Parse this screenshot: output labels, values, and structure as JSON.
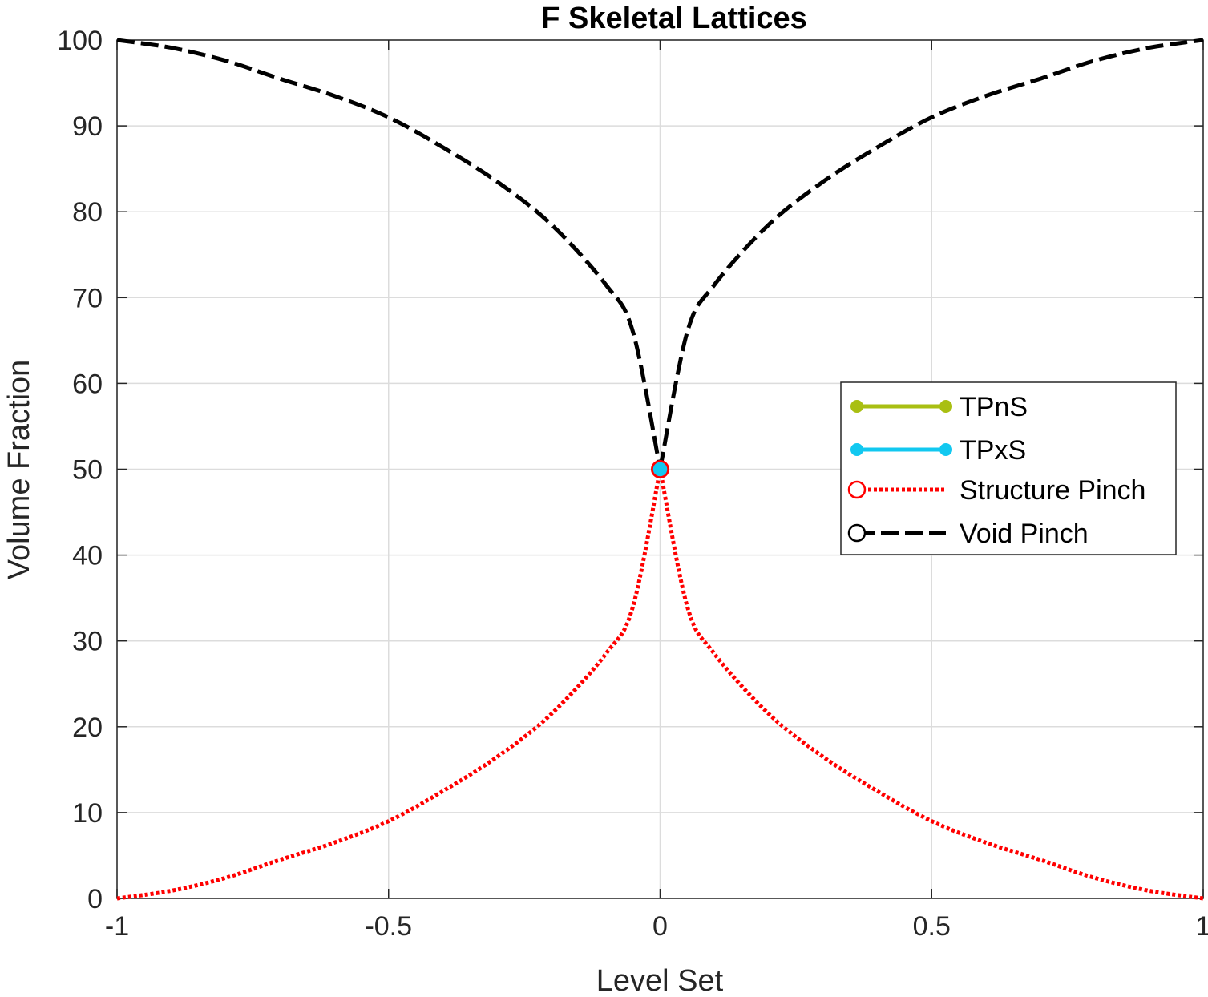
{
  "chart_data": {
    "type": "line",
    "title": "F Skeletal Lattices",
    "xlabel": "Level Set",
    "ylabel": "Volume Fraction",
    "xlim": [
      -1,
      1
    ],
    "ylim": [
      0,
      100
    ],
    "xticks": [
      -1,
      -0.5,
      0,
      0.5,
      1
    ],
    "xtick_labels": [
      "-1",
      "-0.5",
      "0",
      "0.5",
      "1"
    ],
    "yticks": [
      0,
      10,
      20,
      30,
      40,
      50,
      60,
      70,
      80,
      90,
      100
    ],
    "ytick_labels": [
      "0",
      "10",
      "20",
      "30",
      "40",
      "50",
      "60",
      "70",
      "80",
      "90",
      "100"
    ],
    "grid": true,
    "legend_position": "right",
    "series": [
      {
        "name": "TPnS",
        "color": "#A9BF12",
        "style": "solid-dot",
        "x": [
          0
        ],
        "y": [
          50
        ]
      },
      {
        "name": "TPxS",
        "color": "#12C8F0",
        "style": "solid-dot",
        "x": [
          0
        ],
        "y": [
          50
        ]
      },
      {
        "name": "Structure Pinch",
        "color": "#FF0000",
        "style": "dotted-open-circle",
        "x": [
          -1,
          -0.9,
          -0.8,
          -0.7,
          -0.6,
          -0.5,
          -0.4,
          -0.3,
          -0.2,
          -0.1,
          -0.05,
          0,
          0.05,
          0.1,
          0.2,
          0.3,
          0.4,
          0.5,
          0.6,
          0.7,
          0.8,
          0.9,
          1
        ],
        "y": [
          0,
          0.9,
          2.4,
          4.5,
          6.5,
          9,
          12.5,
          16.5,
          21.5,
          28.5,
          34,
          50,
          34,
          28.5,
          21.5,
          16.5,
          12.5,
          9,
          6.5,
          4.5,
          2.4,
          0.9,
          0
        ]
      },
      {
        "name": "Void Pinch",
        "color": "#000000",
        "style": "dashed-open-circle",
        "x": [
          -1,
          -0.9,
          -0.8,
          -0.7,
          -0.6,
          -0.5,
          -0.4,
          -0.3,
          -0.2,
          -0.1,
          -0.05,
          0,
          0.05,
          0.1,
          0.2,
          0.3,
          0.4,
          0.5,
          0.6,
          0.7,
          0.8,
          0.9,
          1
        ],
        "y": [
          100,
          99.1,
          97.6,
          95.5,
          93.5,
          91,
          87.5,
          83.5,
          78.5,
          71.5,
          66,
          50,
          66,
          71.5,
          78.5,
          83.5,
          87.5,
          91,
          93.5,
          95.5,
          97.6,
          99.1,
          100
        ]
      }
    ],
    "markers": [
      {
        "series": "Structure Pinch",
        "x": 0,
        "y": 50,
        "color": "#FF0000"
      },
      {
        "series": "TPxS",
        "x": 0,
        "y": 50,
        "color": "#12C8F0"
      }
    ]
  }
}
